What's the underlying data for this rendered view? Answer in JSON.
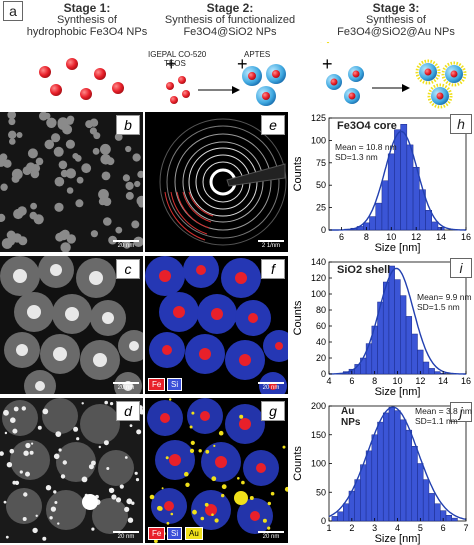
{
  "label_a": "a",
  "stages": [
    {
      "title": "Stage 1:",
      "line2": "Synthesis of",
      "line3": "hydrophobic Fe3O4 NPs"
    },
    {
      "title": "Stage 2:",
      "line2": "Synthesis of functionalized",
      "line3": "Fe3O4@SiO2 NPs"
    },
    {
      "title": "Stage 3:",
      "line2": "Synthesis of",
      "line3": "Fe3O4@SiO2@Au NPs"
    }
  ],
  "reagents": {
    "igepal": "IGEPAL CO-520",
    "teos": "TEOS",
    "aptes": "APTES",
    "plus": "+"
  },
  "panels": {
    "b": {
      "letter": "b",
      "scale": "20 nm"
    },
    "c": {
      "letter": "c",
      "scale": "20 nm"
    },
    "d": {
      "letter": "d",
      "scale": "20 nm"
    },
    "e": {
      "letter": "e",
      "scale": "2 1/nm"
    },
    "f": {
      "letter": "f",
      "scale": "20 nm",
      "legend": [
        "Fe",
        "Si"
      ]
    },
    "g": {
      "letter": "g",
      "scale": "20 nm",
      "legend": [
        "Fe",
        "Si",
        "Au"
      ]
    }
  },
  "colors": {
    "fe": "#e8202a",
    "si": "#3a4fd8",
    "au": "#f0e01a",
    "bar": "#3b55d6",
    "curve": "#2240b0"
  },
  "chart_data": [
    {
      "type": "bar",
      "letter": "h",
      "title": "Fe3O4 core",
      "annotation": [
        "Mean = 10.8 nm",
        "SD=1.3 nm"
      ],
      "xlabel": "Size [nm]",
      "ylabel": "Counts",
      "xlim": [
        5,
        16
      ],
      "ylim": [
        0,
        125
      ],
      "xticks": [
        6,
        8,
        10,
        12,
        14,
        16
      ],
      "yticks": [
        0,
        25,
        50,
        75,
        100,
        125
      ],
      "bin_width": 0.5,
      "bins": [
        6.5,
        7.0,
        7.5,
        8.0,
        8.5,
        9.0,
        9.5,
        10.0,
        10.5,
        11.0,
        11.5,
        12.0,
        12.5,
        13.0,
        13.5,
        14.0
      ],
      "values": [
        1,
        2,
        4,
        8,
        15,
        30,
        55,
        85,
        112,
        118,
        95,
        70,
        45,
        22,
        9,
        3
      ],
      "fit": {
        "mean": 10.8,
        "sd": 1.3,
        "peak": 110
      }
    },
    {
      "type": "bar",
      "letter": "i",
      "title": "SiO2 shell",
      "annotation": [
        "Mean= 9.9 nm",
        "SD=1.5 nm"
      ],
      "xlabel": "Size [nm]",
      "ylabel": "Counts",
      "xlim": [
        4,
        16
      ],
      "ylim": [
        0,
        140
      ],
      "xticks": [
        4,
        6,
        8,
        10,
        12,
        14,
        16
      ],
      "yticks": [
        0,
        20,
        40,
        60,
        80,
        100,
        120,
        140
      ],
      "bin_width": 0.5,
      "bins": [
        5.0,
        5.5,
        6.0,
        6.5,
        7.0,
        7.5,
        8.0,
        8.5,
        9.0,
        9.5,
        10.0,
        10.5,
        11.0,
        11.5,
        12.0,
        12.5,
        13.0,
        13.5,
        14.0
      ],
      "values": [
        1,
        3,
        6,
        12,
        20,
        38,
        60,
        90,
        115,
        135,
        118,
        98,
        72,
        50,
        30,
        15,
        7,
        3,
        1
      ],
      "fit": {
        "mean": 9.9,
        "sd": 1.5,
        "peak": 132
      }
    },
    {
      "type": "bar",
      "letter": "j",
      "title": "Au NPs",
      "annotation": [
        "Mean = 3.8 nm",
        "SD=1.1 nm"
      ],
      "xlabel": "Size [nm]",
      "ylabel": "Counts",
      "xlim": [
        1,
        7
      ],
      "ylim": [
        0,
        200
      ],
      "xticks": [
        1,
        2,
        3,
        4,
        5,
        6,
        7
      ],
      "yticks": [
        0,
        50,
        100,
        150,
        200
      ],
      "bin_width": 0.25,
      "bins": [
        1.25,
        1.5,
        1.75,
        2.0,
        2.25,
        2.5,
        2.75,
        3.0,
        3.25,
        3.5,
        3.75,
        4.0,
        4.25,
        4.5,
        4.75,
        5.0,
        5.25,
        5.5,
        5.75,
        6.0,
        6.25,
        6.5
      ],
      "values": [
        8,
        16,
        30,
        52,
        72,
        98,
        122,
        150,
        172,
        188,
        198,
        192,
        176,
        158,
        130,
        100,
        72,
        48,
        30,
        18,
        10,
        5
      ],
      "fit": {
        "mean": 3.8,
        "sd": 1.1,
        "peak": 198
      }
    }
  ]
}
